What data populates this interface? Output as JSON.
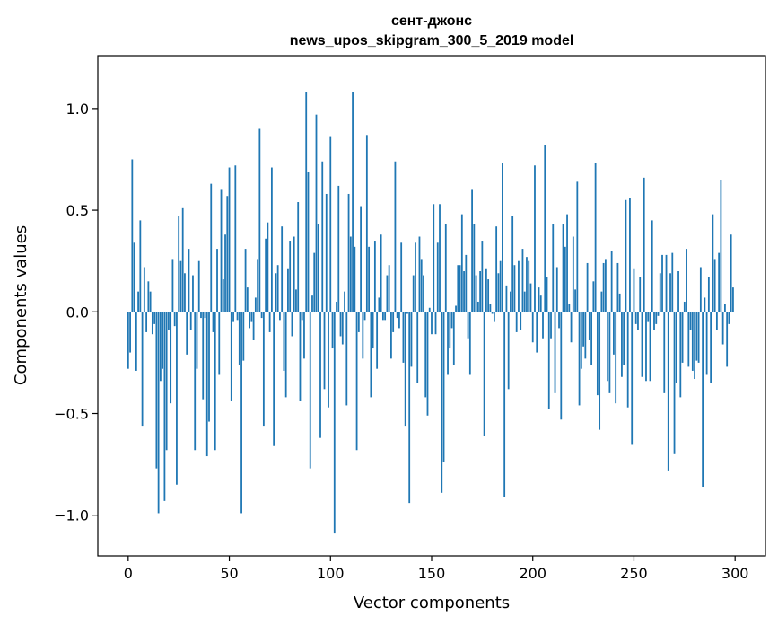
{
  "chart_data": {
    "type": "bar",
    "title": "сент-джонс",
    "subtitle": "news_upos_skipgram_300_5_2019 model",
    "xlabel": "Vector components",
    "ylabel": "Components values",
    "xlim": [
      -15,
      315
    ],
    "ylim": [
      -1.2,
      1.26
    ],
    "xticks": [
      0,
      50,
      100,
      150,
      200,
      250,
      300
    ],
    "xtick_labels": [
      "0",
      "50",
      "100",
      "150",
      "200",
      "250",
      "300"
    ],
    "yticks": [
      -1.0,
      -0.5,
      0.0,
      0.5,
      1.0
    ],
    "ytick_labels": [
      "−1.0",
      "−0.5",
      "0.0",
      "0.5",
      "1.0"
    ],
    "grid": false,
    "bar_color": "#1f77b4",
    "values": [
      -0.28,
      -0.2,
      0.75,
      0.34,
      -0.29,
      0.1,
      0.45,
      -0.56,
      0.22,
      -0.1,
      0.15,
      0.1,
      -0.11,
      -0.06,
      -0.77,
      -0.99,
      -0.34,
      -0.28,
      -0.93,
      -0.68,
      -0.09,
      -0.45,
      0.26,
      -0.07,
      -0.85,
      0.47,
      0.25,
      0.51,
      0.19,
      -0.21,
      0.31,
      -0.09,
      0.18,
      -0.68,
      -0.28,
      0.25,
      -0.03,
      -0.43,
      -0.03,
      -0.71,
      -0.54,
      0.63,
      -0.1,
      -0.68,
      0.31,
      -0.31,
      0.6,
      0.16,
      0.38,
      0.57,
      0.71,
      -0.44,
      -0.05,
      0.72,
      -0.04,
      -0.26,
      -0.99,
      -0.24,
      0.31,
      0.12,
      -0.08,
      -0.05,
      -0.14,
      0.07,
      0.26,
      0.9,
      -0.03,
      -0.56,
      0.36,
      0.44,
      -0.1,
      0.71,
      -0.66,
      0.19,
      0.23,
      -0.04,
      0.42,
      -0.29,
      -0.42,
      0.21,
      0.35,
      -0.12,
      0.37,
      0.11,
      0.54,
      -0.44,
      -0.04,
      -0.23,
      1.08,
      0.69,
      -0.77,
      0.08,
      0.29,
      0.97,
      0.43,
      -0.62,
      0.74,
      -0.38,
      0.58,
      -0.47,
      0.86,
      -0.18,
      -1.09,
      0.05,
      0.62,
      -0.12,
      -0.16,
      0.1,
      -0.46,
      0.58,
      0.37,
      1.08,
      0.32,
      -0.68,
      -0.1,
      0.52,
      -0.23,
      -0.04,
      0.87,
      0.32,
      -0.42,
      -0.18,
      0.35,
      -0.28,
      0.07,
      0.38,
      -0.04,
      -0.04,
      0.18,
      0.23,
      -0.23,
      -0.1,
      0.74,
      -0.03,
      -0.08,
      0.34,
      -0.25,
      -0.56,
      -0.01,
      -0.94,
      -0.27,
      0.18,
      0.34,
      -0.35,
      0.37,
      0.26,
      0.18,
      -0.42,
      -0.51,
      0.02,
      -0.11,
      0.53,
      -0.11,
      0.34,
      0.53,
      -0.89,
      -0.74,
      0.43,
      -0.31,
      -0.18,
      -0.08,
      -0.26,
      0.03,
      0.23,
      0.23,
      0.48,
      0.2,
      0.28,
      -0.13,
      -0.31,
      0.6,
      0.43,
      0.18,
      0.05,
      0.2,
      0.35,
      -0.61,
      0.21,
      0.16,
      0.04,
      -0.01,
      -0.05,
      0.42,
      0.19,
      0.25,
      0.73,
      -0.91,
      0.13,
      -0.38,
      0.1,
      0.47,
      0.23,
      -0.1,
      0.25,
      -0.09,
      0.31,
      0.1,
      0.27,
      0.25,
      0.14,
      -0.15,
      0.72,
      -0.2,
      0.12,
      0.08,
      -0.13,
      0.82,
      0.17,
      -0.48,
      -0.13,
      0.43,
      -0.4,
      0.22,
      -0.08,
      -0.53,
      0.43,
      0.32,
      0.48,
      0.04,
      -0.15,
      0.37,
      0.11,
      0.64,
      -0.46,
      -0.28,
      -0.17,
      -0.23,
      0.24,
      -0.14,
      -0.26,
      0.15,
      0.73,
      -0.41,
      -0.58,
      0.1,
      0.24,
      0.26,
      -0.34,
      -0.4,
      0.3,
      -0.21,
      -0.45,
      0.24,
      0.09,
      -0.32,
      -0.26,
      0.55,
      -0.47,
      0.56,
      -0.65,
      0.21,
      -0.06,
      -0.09,
      0.17,
      -0.32,
      0.66,
      -0.34,
      -0.05,
      -0.34,
      0.45,
      -0.09,
      -0.06,
      -0.02,
      0.19,
      0.28,
      -0.4,
      0.28,
      -0.78,
      0.19,
      0.29,
      -0.7,
      -0.35,
      0.2,
      -0.42,
      -0.25,
      0.05,
      0.31,
      -0.27,
      -0.09,
      -0.29,
      -0.33,
      -0.24,
      -0.25,
      0.22,
      -0.86,
      0.07,
      -0.31,
      0.17,
      -0.35,
      0.48,
      0.26,
      -0.09,
      0.29,
      0.65,
      -0.16,
      0.04,
      -0.27,
      -0.06,
      0.38,
      0.12
    ]
  }
}
